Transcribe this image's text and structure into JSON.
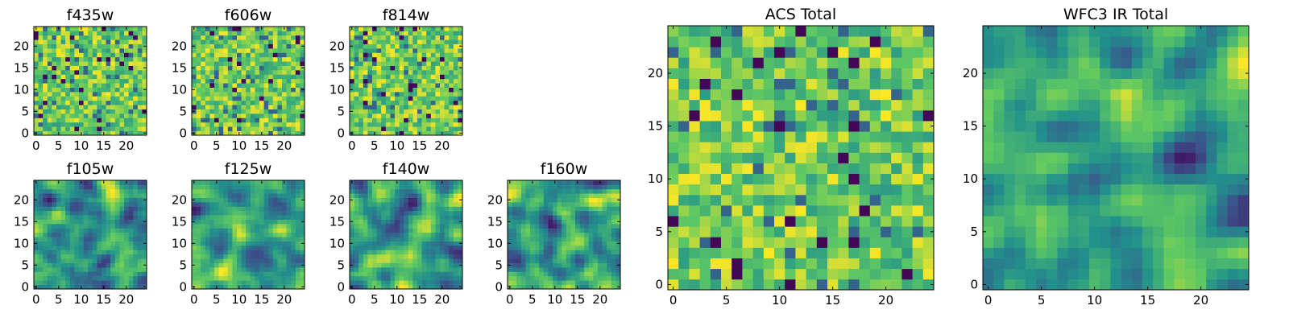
{
  "chart_data": [
    {
      "id": "f435w",
      "type": "heatmap",
      "title": "f435w",
      "grid_size": 25,
      "xticks": [
        0,
        5,
        10,
        15,
        20
      ],
      "yticks": [
        0,
        5,
        10,
        15,
        20
      ],
      "texture": "noise",
      "xlim": [
        0,
        25
      ],
      "ylim": [
        0,
        25
      ]
    },
    {
      "id": "f606w",
      "type": "heatmap",
      "title": "f606w",
      "grid_size": 25,
      "xticks": [
        0,
        5,
        10,
        15,
        20
      ],
      "yticks": [
        0,
        5,
        10,
        15,
        20
      ],
      "texture": "noise",
      "xlim": [
        0,
        25
      ],
      "ylim": [
        0,
        25
      ]
    },
    {
      "id": "f814w",
      "type": "heatmap",
      "title": "f814w",
      "grid_size": 25,
      "xticks": [
        0,
        5,
        10,
        15,
        20
      ],
      "yticks": [
        0,
        5,
        10,
        15,
        20
      ],
      "texture": "noise",
      "xlim": [
        0,
        25
      ],
      "ylim": [
        0,
        25
      ]
    },
    {
      "id": "f105w",
      "type": "heatmap",
      "title": "f105w",
      "grid_size": 25,
      "xticks": [
        0,
        5,
        10,
        15,
        20
      ],
      "yticks": [
        0,
        5,
        10,
        15,
        20
      ],
      "texture": "smooth",
      "xlim": [
        0,
        25
      ],
      "ylim": [
        0,
        25
      ]
    },
    {
      "id": "f125w",
      "type": "heatmap",
      "title": "f125w",
      "grid_size": 25,
      "xticks": [
        0,
        5,
        10,
        15,
        20
      ],
      "yticks": [
        0,
        5,
        10,
        15,
        20
      ],
      "texture": "smooth",
      "xlim": [
        0,
        25
      ],
      "ylim": [
        0,
        25
      ]
    },
    {
      "id": "f140w",
      "type": "heatmap",
      "title": "f140w",
      "grid_size": 25,
      "xticks": [
        0,
        5,
        10,
        15,
        20
      ],
      "yticks": [
        0,
        5,
        10,
        15,
        20
      ],
      "texture": "smooth",
      "xlim": [
        0,
        25
      ],
      "ylim": [
        0,
        25
      ]
    },
    {
      "id": "f160w",
      "type": "heatmap",
      "title": "f160w",
      "grid_size": 25,
      "xticks": [
        0,
        5,
        10,
        15,
        20
      ],
      "yticks": [
        0,
        5,
        10,
        15,
        20
      ],
      "texture": "smooth",
      "xlim": [
        0,
        25
      ],
      "ylim": [
        0,
        25
      ]
    },
    {
      "id": "acs-total",
      "type": "heatmap",
      "title": "ACS Total",
      "grid_size": 25,
      "xticks": [
        0,
        5,
        10,
        15,
        20
      ],
      "yticks": [
        0,
        5,
        10,
        15,
        20
      ],
      "texture": "noise",
      "xlim": [
        0,
        25
      ],
      "ylim": [
        0,
        25
      ]
    },
    {
      "id": "wfc3-ir-total",
      "type": "heatmap",
      "title": "WFC3 IR Total",
      "grid_size": 25,
      "xticks": [
        0,
        5,
        10,
        15,
        20
      ],
      "yticks": [
        0,
        5,
        10,
        15,
        20
      ],
      "texture": "smooth",
      "xlim": [
        0,
        25
      ],
      "ylim": [
        0,
        25
      ]
    }
  ],
  "colormap": {
    "name": "viridis",
    "stops": [
      "#440154",
      "#3b528b",
      "#21918c",
      "#5ec962",
      "#fde725"
    ]
  },
  "style": {
    "frame_color": "#000000",
    "background": "#ffffff"
  }
}
